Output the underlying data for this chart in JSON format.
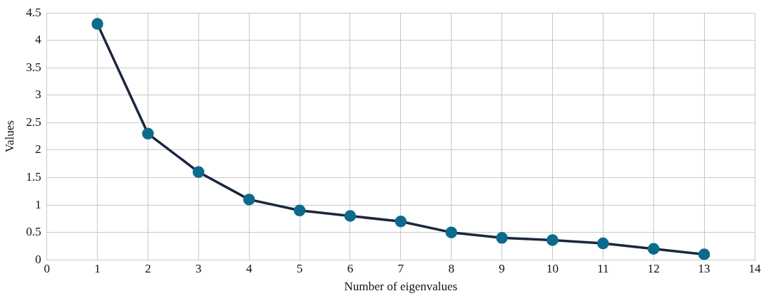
{
  "chart_data": {
    "type": "line",
    "xlabel": "Number of eigenvalues",
    "ylabel": "Values",
    "x": [
      1,
      2,
      3,
      4,
      5,
      6,
      7,
      8,
      9,
      10,
      11,
      12,
      13
    ],
    "series": [
      {
        "color": "#1b2740",
        "values": [
          4.3,
          2.3,
          1.6,
          1.1,
          0.9,
          0.8,
          0.7,
          0.5,
          0.4,
          0.36,
          0.3,
          0.2,
          0.1
        ]
      }
    ],
    "xlim": [
      0,
      14
    ],
    "xticks": [
      0,
      1,
      2,
      3,
      4,
      5,
      6,
      7,
      8,
      9,
      10,
      11,
      12,
      13,
      14
    ],
    "ylim": [
      0,
      4.5
    ],
    "yticks": [
      0,
      0.5,
      1,
      1.5,
      2,
      2.5,
      3,
      3.5,
      4,
      4.5
    ],
    "grid": true,
    "legend": false,
    "marker": "circle",
    "line_style": "solid"
  }
}
